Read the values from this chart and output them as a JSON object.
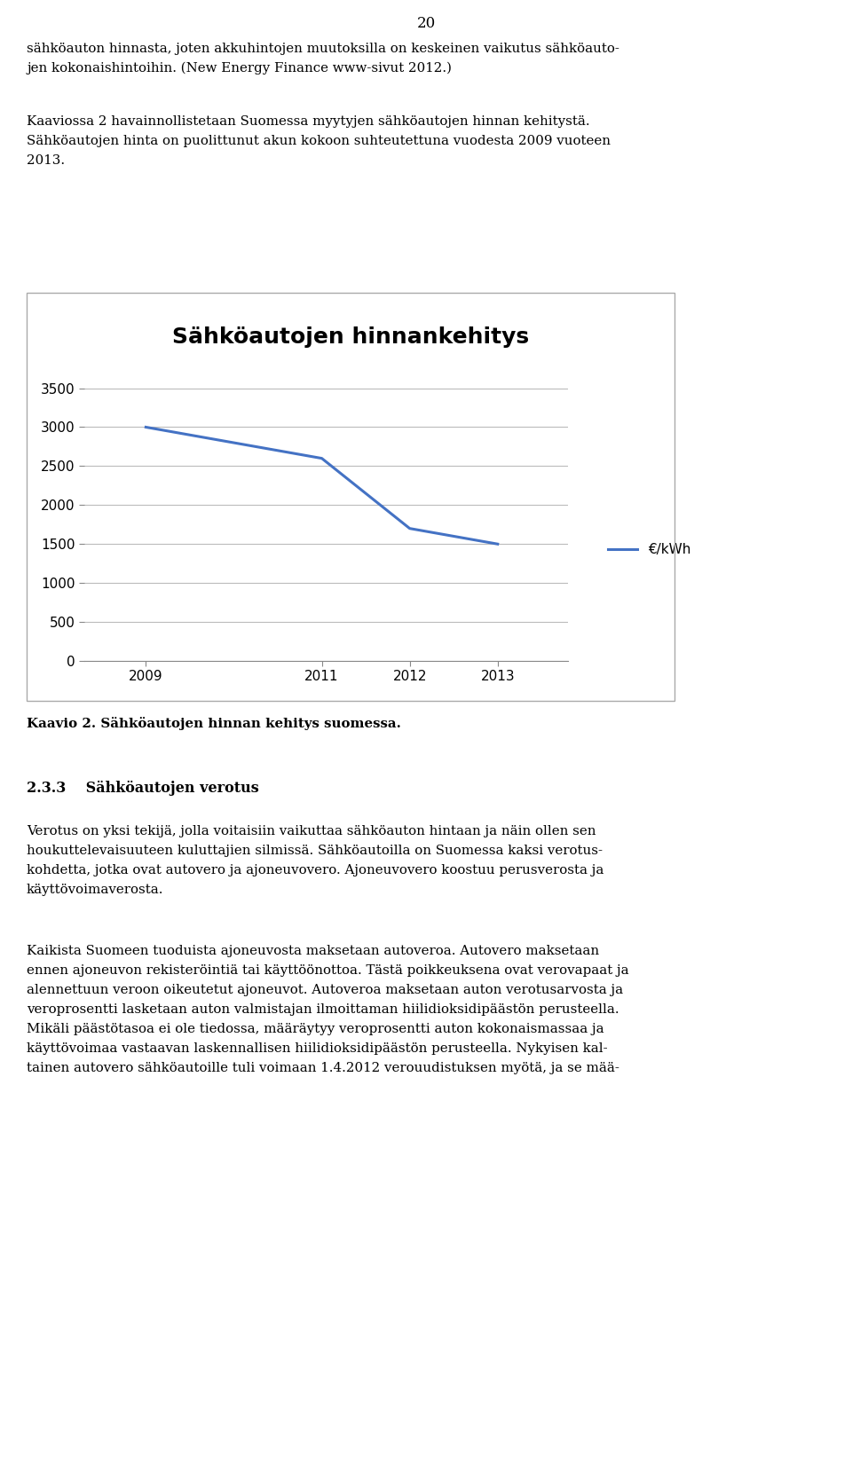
{
  "title": "Sähköautojen hinnankehitys",
  "x_values": [
    2009,
    2011,
    2012,
    2013
  ],
  "y_values": [
    3000,
    2600,
    1700,
    1500
  ],
  "x_ticks": [
    2009,
    2011,
    2012,
    2013
  ],
  "y_ticks": [
    0,
    500,
    1000,
    1500,
    2000,
    2500,
    3000,
    3500
  ],
  "ylim": [
    0,
    3700
  ],
  "xlim_left": 2008.3,
  "xlim_right": 2013.8,
  "line_color": "#4472C4",
  "line_width": 2.2,
  "legend_label": "€/kWh",
  "title_fontsize": 18,
  "tick_fontsize": 11,
  "legend_fontsize": 11,
  "grid_color": "#BBBBBB",
  "chart_bg": "#FFFFFF",
  "outer_bg": "#FFFFFF",
  "border_color": "#AAAAAA",
  "caption": "Kaavio 2. Sähköautojen hinnan kehitys suomessa.",
  "page_number": "20",
  "body_text_1a": "sähköauton hinnasta, joten akkuhintojen muutoksilla on keskeinen vaikutus sähköauto-",
  "body_text_1b": "jen kokonaishintoihin. (New Energy Finance www-sivut 2012.)",
  "body_text_2a": "Kaaviossa 2 havainnollistetaan Suomessa myytyjen sähköautojen hinnan kehitystä.",
  "body_text_2b": "Sähköautojen hinta on puolittunut akun kokoon suhteutettuna vuodesta 2009 vuoteen",
  "body_text_2c": "2013.",
  "section_title": "2.3.3    Sähköautojen verotus",
  "body_text_3a": "Verotus on yksi tekijä, jolla voitaisiin vaikuttaa sähköauton hintaan ja näin ollen sen",
  "body_text_3b": "houkuttelevaisuuteen kuluttajien silmissä. Sähköautoilla on Suomessa kaksi verotus-",
  "body_text_3c": "kohdetta, jotka ovat autovero ja ajoneuvovero. Ajoneuvovero koostuu perusverosta ja",
  "body_text_3d": "käyttövoimaverosta.",
  "body_text_4a": "Kaikista Suomeen tuoduista ajoneuvosta maksetaan autoveroa. Autovero maksetaan",
  "body_text_4b": "ennen ajoneuvon rekisteröintiä tai käyttöönottoa. Tästä poikkeuksena ovat verovapaat ja",
  "body_text_4c": "alennettuun veroon oikeutetut ajoneuvot. Autoveroa maksetaan auton verotusarvosta ja",
  "body_text_4d": "veroprosentti lasketaan auton valmistajan ilmoittaman hiilidioksidipäästön perusteella.",
  "body_text_4e": "Mikäli päästötasoa ei ole tiedossa, määräytyy veroprosentti auton kokonaismassaa ja",
  "body_text_4f": "käyttövoimaa vastaavan laskennallisen hiilidioksidipäästön perusteella. Nykyisen kal-",
  "body_text_4g": "tainen autovero sähköautoille tuli voimaan 1.4.2012 verouudistuksen myötä, ja se mää-"
}
